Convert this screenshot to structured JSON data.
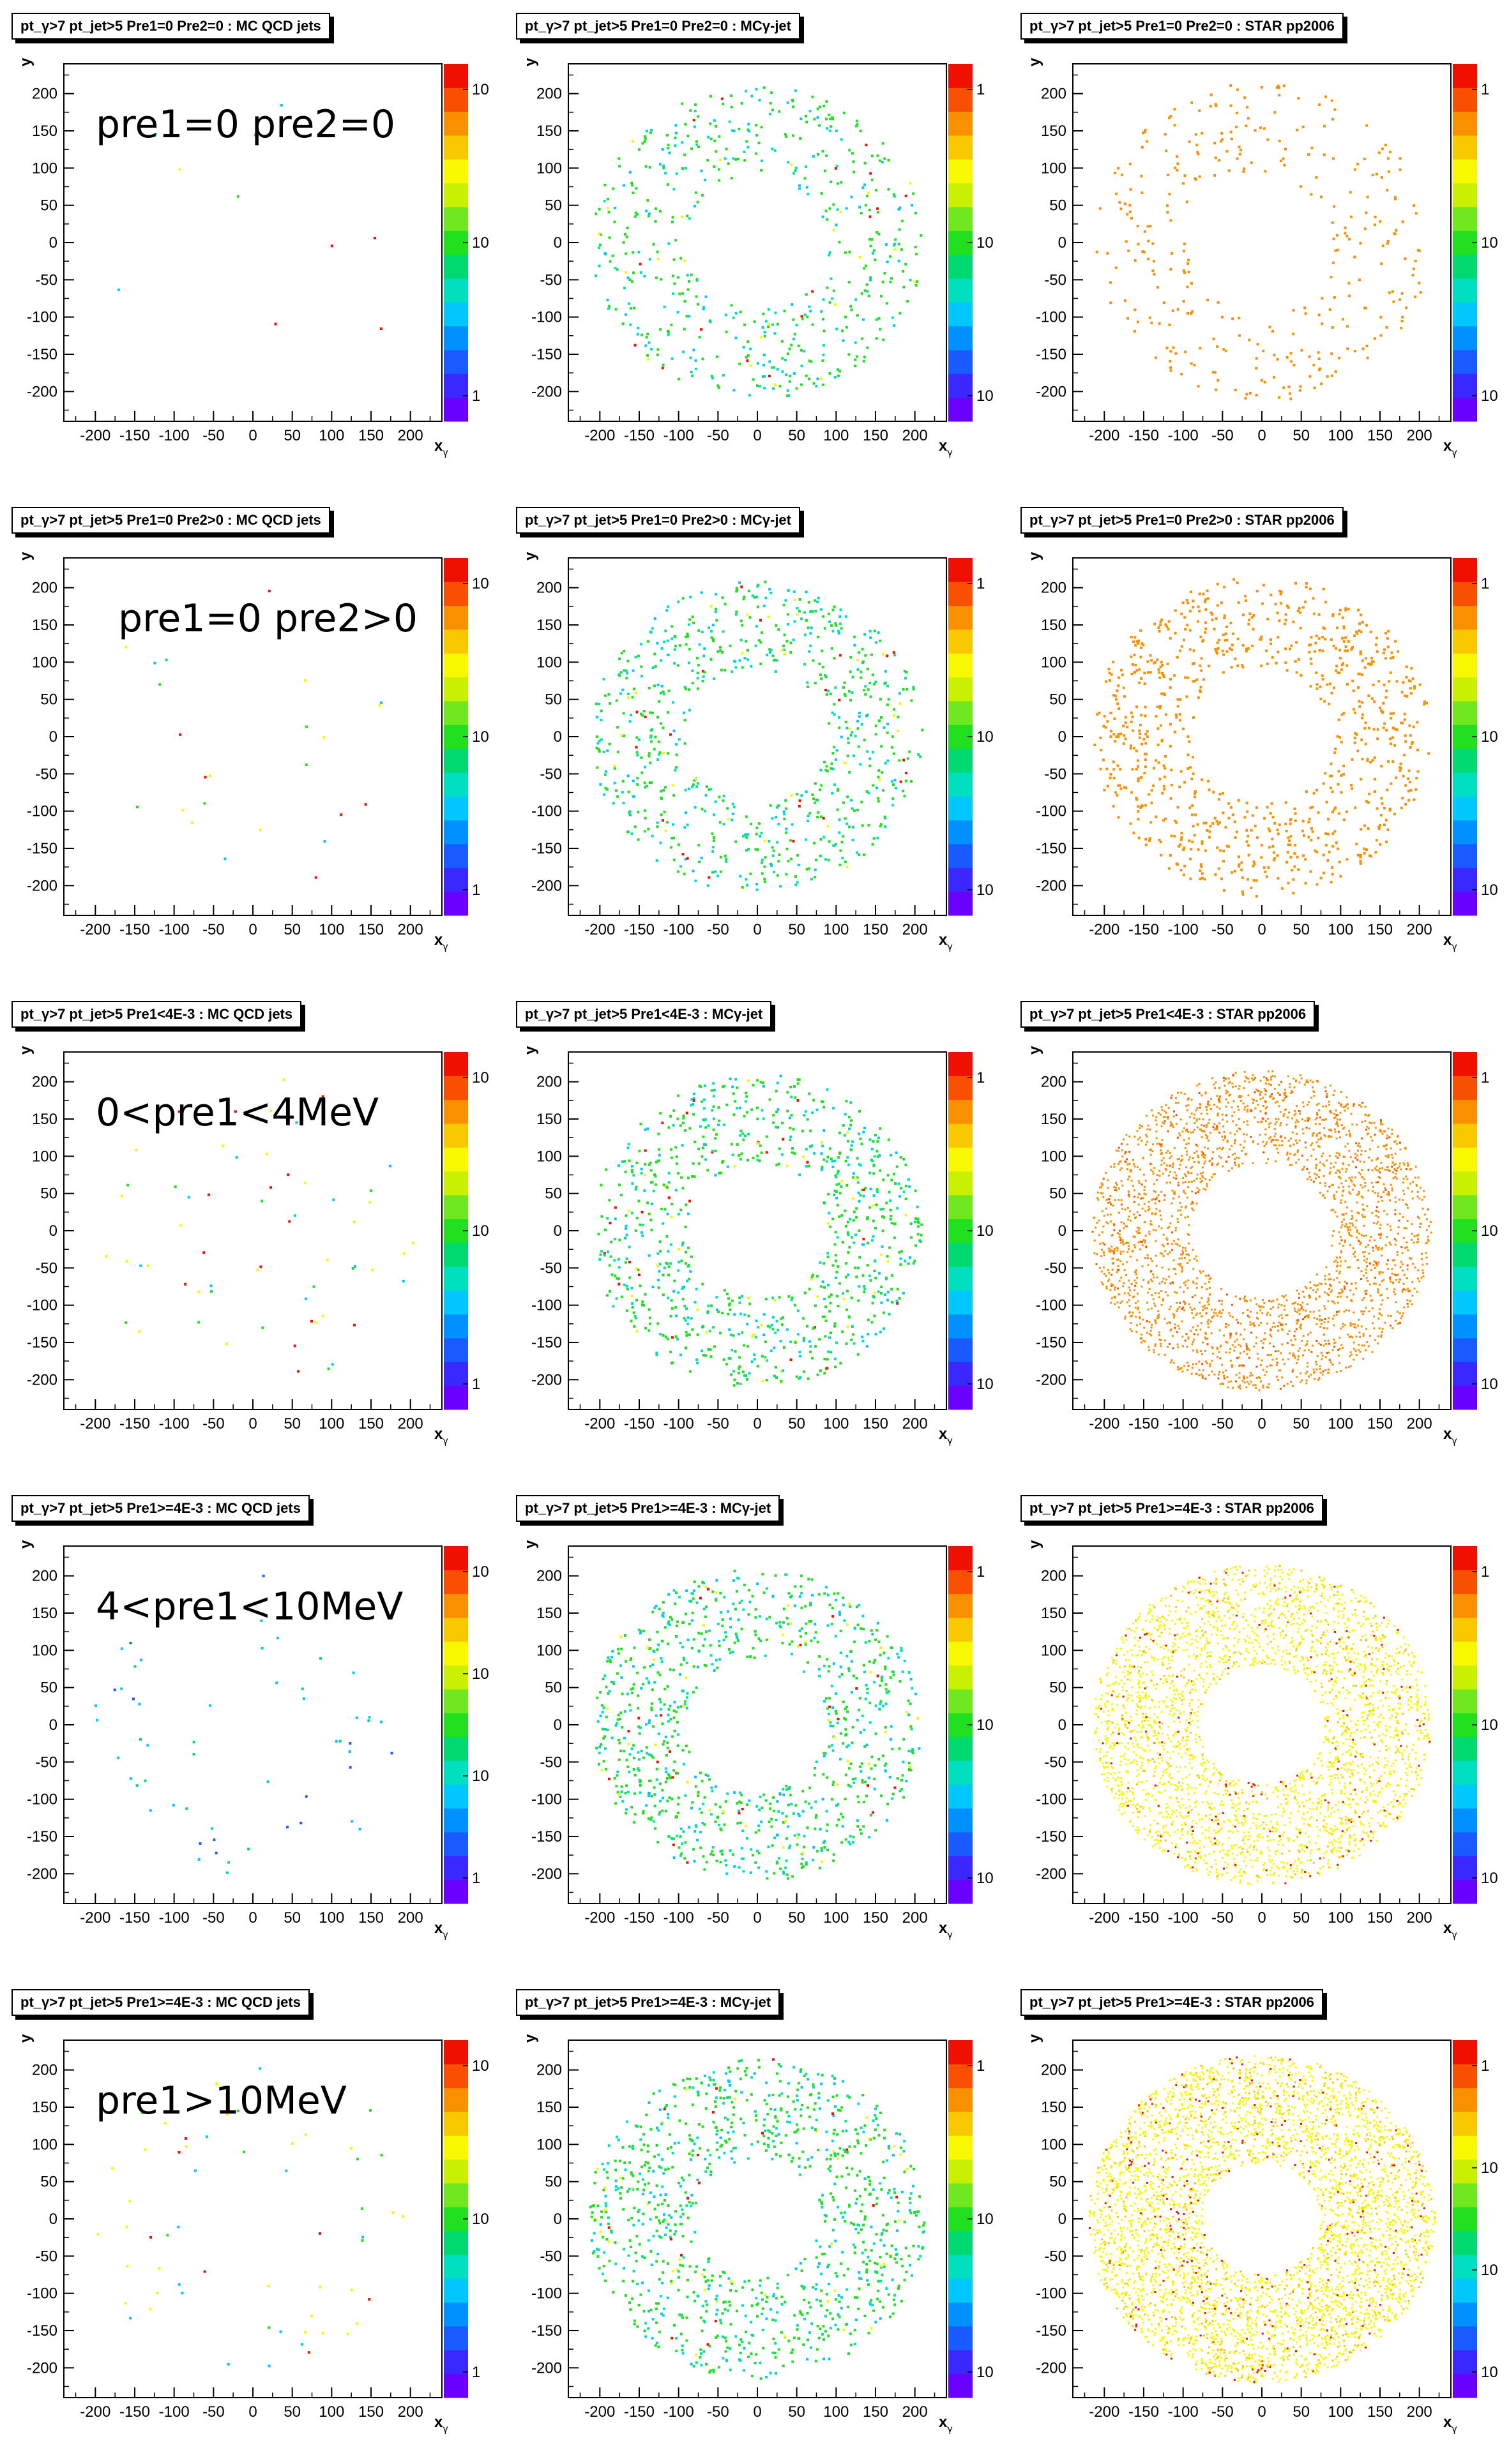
{
  "axes": {
    "x_label_base": "x",
    "x_label_sub": "γ",
    "y_label_base": "y",
    "y_label_sub": "γ",
    "ticks": [
      "-200",
      "-150",
      "-100",
      "-50",
      "0",
      "50",
      "100",
      "150",
      "200"
    ]
  },
  "color_palette": [
    "#6a00ff",
    "#3b28ff",
    "#1a5bff",
    "#0090ff",
    "#00c8ff",
    "#00e0c0",
    "#00d870",
    "#20e020",
    "#70e820",
    "#c8f000",
    "#f8f800",
    "#f8c800",
    "#f89000",
    "#f85000",
    "#f01000"
  ],
  "chart_data": [
    {
      "type": "scatter",
      "title": "pt_γ>7 pt_jet>5 Pre1=0 Pre2=0 : MC QCD jets",
      "label": "pre1=0 pre2=0",
      "xlim": [
        -240,
        240
      ],
      "ylim": [
        -240,
        240
      ],
      "z_ticks": [
        "10",
        "10",
        "1"
      ],
      "approx_points": 10,
      "ring": [
        30,
        200
      ],
      "color": "mixed-sparse"
    },
    {
      "type": "scatter",
      "title": "pt_γ>7 pt_jet>5 Pre1=0 Pre2=0 : MCγ-jet",
      "label": "",
      "xlim": [
        -240,
        240
      ],
      "ylim": [
        -240,
        240
      ],
      "z_ticks": [
        "1",
        "10",
        "10"
      ],
      "approx_points": 550,
      "ring": [
        90,
        210
      ],
      "color": "green-cyan"
    },
    {
      "type": "scatter",
      "title": "pt_γ>7 pt_jet>5 Pre1=0 Pre2=0 : STAR pp2006",
      "label": "",
      "xlim": [
        -240,
        240
      ],
      "ylim": [
        -240,
        240
      ],
      "z_ticks": [
        "1",
        "10",
        "10"
      ],
      "approx_points": 330,
      "ring": [
        90,
        215
      ],
      "color": "orange"
    },
    {
      "type": "scatter",
      "title": "pt_γ>7 pt_jet>5 Pre1=0 Pre2>0 : MC QCD jets",
      "label": "pre1=0 pre2>0",
      "xlim": [
        -240,
        240
      ],
      "ylim": [
        -240,
        240
      ],
      "z_ticks": [
        "10",
        "10",
        "1"
      ],
      "approx_points": 25,
      "ring": [
        40,
        210
      ],
      "color": "mixed-sparse"
    },
    {
      "type": "scatter",
      "title": "pt_γ>7 pt_jet>5 Pre1=0 Pre2>0 : MCγ-jet",
      "label": "",
      "xlim": [
        -240,
        240
      ],
      "ylim": [
        -240,
        240
      ],
      "z_ticks": [
        "1",
        "10",
        "10"
      ],
      "approx_points": 750,
      "ring": [
        90,
        210
      ],
      "color": "green-cyan"
    },
    {
      "type": "scatter",
      "title": "pt_γ>7 pt_jet>5 Pre1=0 Pre2>0 : STAR pp2006",
      "label": "",
      "xlim": [
        -240,
        240
      ],
      "ylim": [
        -240,
        240
      ],
      "z_ticks": [
        "1",
        "10",
        "10"
      ],
      "approx_points": 900,
      "ring": [
        90,
        215
      ],
      "color": "orange"
    },
    {
      "type": "scatter",
      "title": "pt_γ>7 pt_jet>5 Pre1<4E-3 : MC QCD jets",
      "label": "0<pre1<4MeV",
      "xlim": [
        -240,
        240
      ],
      "ylim": [
        -240,
        240
      ],
      "z_ticks": [
        "10",
        "10",
        "1"
      ],
      "approx_points": 60,
      "ring": [
        40,
        210
      ],
      "color": "mixed-sparse"
    },
    {
      "type": "scatter",
      "title": "pt_γ>7 pt_jet>5 Pre1<4E-3 : MCγ-jet",
      "label": "",
      "xlim": [
        -240,
        240
      ],
      "ylim": [
        -240,
        240
      ],
      "z_ticks": [
        "1",
        "10",
        "10"
      ],
      "approx_points": 900,
      "ring": [
        90,
        210
      ],
      "color": "green-cyan"
    },
    {
      "type": "scatter",
      "title": "pt_γ>7 pt_jet>5 Pre1<4E-3 : STAR pp2006",
      "label": "",
      "xlim": [
        -240,
        240
      ],
      "ylim": [
        -240,
        240
      ],
      "z_ticks": [
        "1",
        "10",
        "10"
      ],
      "approx_points": 2600,
      "ring": [
        90,
        215
      ],
      "color": "orange-dense"
    },
    {
      "type": "scatter",
      "title": "pt_γ>7 pt_jet>5 Pre1>=4E-3 : MC QCD jets",
      "label": "4<pre1<10MeV",
      "xlim": [
        -240,
        240
      ],
      "ylim": [
        -240,
        240
      ],
      "z_ticks": [
        "10",
        "10",
        "10",
        "1"
      ],
      "approx_points": 55,
      "ring": [
        60,
        210
      ],
      "color": "blue-cyan"
    },
    {
      "type": "scatter",
      "title": "pt_γ>7 pt_jet>5 Pre1>=4E-3 : MCγ-jet",
      "label": "",
      "xlim": [
        -240,
        240
      ],
      "ylim": [
        -240,
        240
      ],
      "z_ticks": [
        "1",
        "10",
        "10"
      ],
      "approx_points": 950,
      "ring": [
        90,
        210
      ],
      "color": "green-cyan"
    },
    {
      "type": "scatter",
      "title": "pt_γ>7 pt_jet>5 Pre1>=4E-3 : STAR pp2006",
      "label": "",
      "xlim": [
        -240,
        240
      ],
      "ylim": [
        -240,
        240
      ],
      "z_ticks": [
        "1",
        "10",
        "10"
      ],
      "approx_points": 3000,
      "ring": [
        80,
        215
      ],
      "color": "yellow-dense"
    },
    {
      "type": "scatter",
      "title": "pt_γ>7 pt_jet>5 Pre1>=4E-3 : MC QCD jets",
      "label": "pre1>10MeV",
      "xlim": [
        -240,
        240
      ],
      "ylim": [
        -240,
        240
      ],
      "z_ticks": [
        "10",
        "10",
        "1"
      ],
      "approx_points": 60,
      "ring": [
        50,
        210
      ],
      "color": "mixed-yellow"
    },
    {
      "type": "scatter",
      "title": "pt_γ>7 pt_jet>5 Pre1>=4E-3 : MCγ-jet",
      "label": "",
      "xlim": [
        -240,
        240
      ],
      "ylim": [
        -240,
        240
      ],
      "z_ticks": [
        "1",
        "10",
        "10"
      ],
      "approx_points": 1050,
      "ring": [
        80,
        215
      ],
      "color": "green-cyan"
    },
    {
      "type": "scatter",
      "title": "pt_γ>7 pt_jet>5 Pre1>=4E-3 : STAR pp2006",
      "label": "",
      "xlim": [
        -240,
        240
      ],
      "ylim": [
        -240,
        240
      ],
      "z_ticks": [
        "1",
        "10",
        "10",
        "10"
      ],
      "approx_points": 4200,
      "ring": [
        75,
        220
      ],
      "color": "yellow-dense"
    }
  ]
}
